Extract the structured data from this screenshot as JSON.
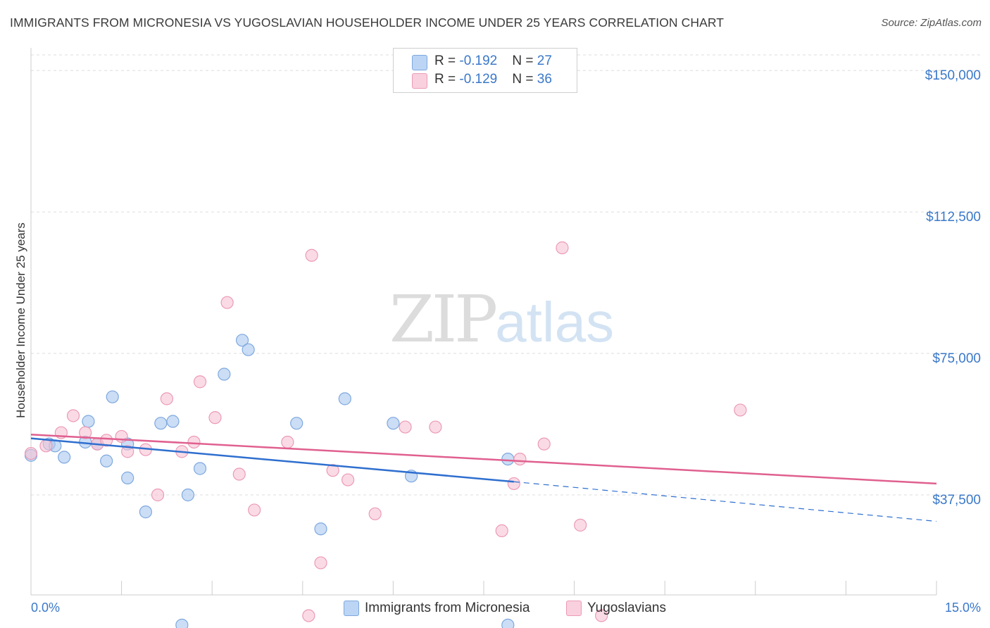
{
  "header": {
    "title": "IMMIGRANTS FROM MICRONESIA VS YUGOSLAVIAN HOUSEHOLDER INCOME UNDER 25 YEARS CORRELATION CHART",
    "source": "Source: ZipAtlas.com"
  },
  "watermark": {
    "zip": "ZIP",
    "atlas": "atlas"
  },
  "legend_top": {
    "rows": [
      {
        "r_label": "R = ",
        "r_value": "-0.192",
        "n_label": "N = ",
        "n_value": "27"
      },
      {
        "r_label": "R = ",
        "r_value": "-0.129",
        "n_label": "N = ",
        "n_value": "36"
      }
    ]
  },
  "chart_data": {
    "type": "scatter",
    "title": "IMMIGRANTS FROM MICRONESIA VS YUGOSLAVIAN HOUSEHOLDER INCOME UNDER 25 YEARS CORRELATION CHART",
    "xlabel": "",
    "ylabel": "Householder Income Under 25 years",
    "xlim": [
      0,
      15
    ],
    "ylim": [
      11000,
      156000
    ],
    "x_unit": "%",
    "y_ticks": [
      {
        "value": 37500,
        "label": "$37,500"
      },
      {
        "value": 75000,
        "label": "$75,000"
      },
      {
        "value": 112500,
        "label": "$112,500"
      },
      {
        "value": 150000,
        "label": "$150,000"
      }
    ],
    "x_tick_labels": [
      {
        "value": 0,
        "label": "0.0%"
      },
      {
        "value": 15,
        "label": "15.0%"
      }
    ],
    "x_minor_ticks": [
      0,
      1.5,
      3,
      4.5,
      6,
      7.5,
      9,
      10.5,
      12,
      13.5,
      15
    ],
    "grid": true,
    "legend_position": "bottom",
    "series": [
      {
        "name": "Immigrants from Micronesia",
        "color": "#a8c8f0",
        "stroke": "#7ea8de",
        "trend_color": "#2f6fcf",
        "trend": {
          "x0": 0,
          "y0": 52500,
          "x1": 8,
          "y1": 41000,
          "dash_to_x": 15,
          "dash_to_y": 30500
        },
        "points": [
          [
            0.0,
            48000
          ],
          [
            0.3,
            51000
          ],
          [
            0.4,
            50500
          ],
          [
            0.55,
            47500
          ],
          [
            0.9,
            51500
          ],
          [
            0.95,
            57000
          ],
          [
            1.1,
            51000
          ],
          [
            1.25,
            46500
          ],
          [
            1.35,
            63500
          ],
          [
            1.6,
            51000
          ],
          [
            1.6,
            42000
          ],
          [
            1.9,
            33000
          ],
          [
            2.15,
            56500
          ],
          [
            2.35,
            57000
          ],
          [
            2.6,
            37500
          ],
          [
            2.8,
            44500
          ],
          [
            3.2,
            69500
          ],
          [
            3.5,
            78500
          ],
          [
            3.6,
            76000
          ],
          [
            4.4,
            56500
          ],
          [
            4.8,
            28500
          ],
          [
            5.2,
            63000
          ],
          [
            6.0,
            56500
          ],
          [
            6.3,
            42500
          ],
          [
            7.9,
            47000
          ],
          [
            2.5,
            3000
          ],
          [
            7.9,
            3000
          ]
        ]
      },
      {
        "name": "Yugoslavians",
        "color": "#f7c3d4",
        "stroke": "#ec9ab7",
        "trend_color": "#e0608f",
        "trend": {
          "x0": 0,
          "y0": 53500,
          "x1": 15,
          "y1": 40500
        },
        "points": [
          [
            0.0,
            48500
          ],
          [
            0.25,
            50500
          ],
          [
            0.5,
            54000
          ],
          [
            0.7,
            58500
          ],
          [
            0.9,
            54000
          ],
          [
            1.1,
            51000
          ],
          [
            1.25,
            52000
          ],
          [
            1.5,
            53000
          ],
          [
            1.6,
            49000
          ],
          [
            1.9,
            49500
          ],
          [
            2.1,
            37500
          ],
          [
            2.25,
            63000
          ],
          [
            2.5,
            49000
          ],
          [
            2.7,
            51500
          ],
          [
            2.8,
            67500
          ],
          [
            3.05,
            58000
          ],
          [
            3.25,
            88500
          ],
          [
            3.45,
            43000
          ],
          [
            3.7,
            33500
          ],
          [
            4.25,
            51500
          ],
          [
            4.6,
            5500
          ],
          [
            4.65,
            101000
          ],
          [
            4.8,
            19500
          ],
          [
            5.0,
            44000
          ],
          [
            5.25,
            41500
          ],
          [
            5.7,
            32500
          ],
          [
            6.2,
            55500
          ],
          [
            6.7,
            55500
          ],
          [
            7.8,
            28000
          ],
          [
            8.0,
            40500
          ],
          [
            8.1,
            47000
          ],
          [
            8.5,
            51000
          ],
          [
            8.8,
            103000
          ],
          [
            9.1,
            29500
          ],
          [
            9.45,
            5500
          ],
          [
            11.75,
            60000
          ]
        ]
      }
    ]
  },
  "legend_bottom": {
    "items": [
      {
        "label": "Immigrants from Micronesia"
      },
      {
        "label": "Yugoslavians"
      }
    ]
  }
}
